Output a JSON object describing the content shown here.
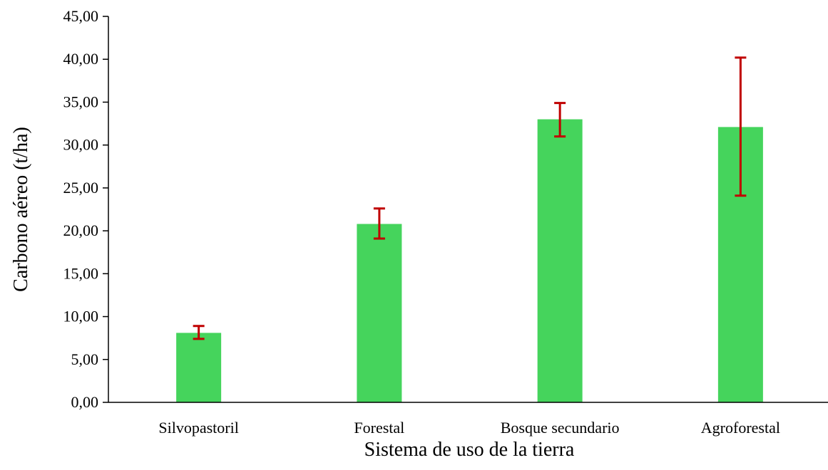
{
  "chart_data": {
    "type": "bar",
    "title": "",
    "xlabel": "Sistema de uso de la tierra",
    "ylabel": "Carbono aéreo (t/ha)",
    "categories": [
      "Silvopastoril",
      "Forestal",
      "Bosque secundario",
      "Agroforestal"
    ],
    "values": [
      8.1,
      20.8,
      33.0,
      32.1
    ],
    "error_low": [
      7.4,
      19.1,
      31.0,
      24.1
    ],
    "error_high": [
      8.9,
      22.6,
      34.9,
      40.2
    ],
    "ylim": [
      0,
      45
    ],
    "yticks": [
      "0,00",
      "5,00",
      "10,00",
      "15,00",
      "20,00",
      "25,00",
      "30,00",
      "35,00",
      "40,00",
      "45,00"
    ],
    "grid": false,
    "legend": "none",
    "colors": {
      "bar": "#45d45c",
      "error_bar": "#c00000",
      "axis": "#000000"
    }
  }
}
